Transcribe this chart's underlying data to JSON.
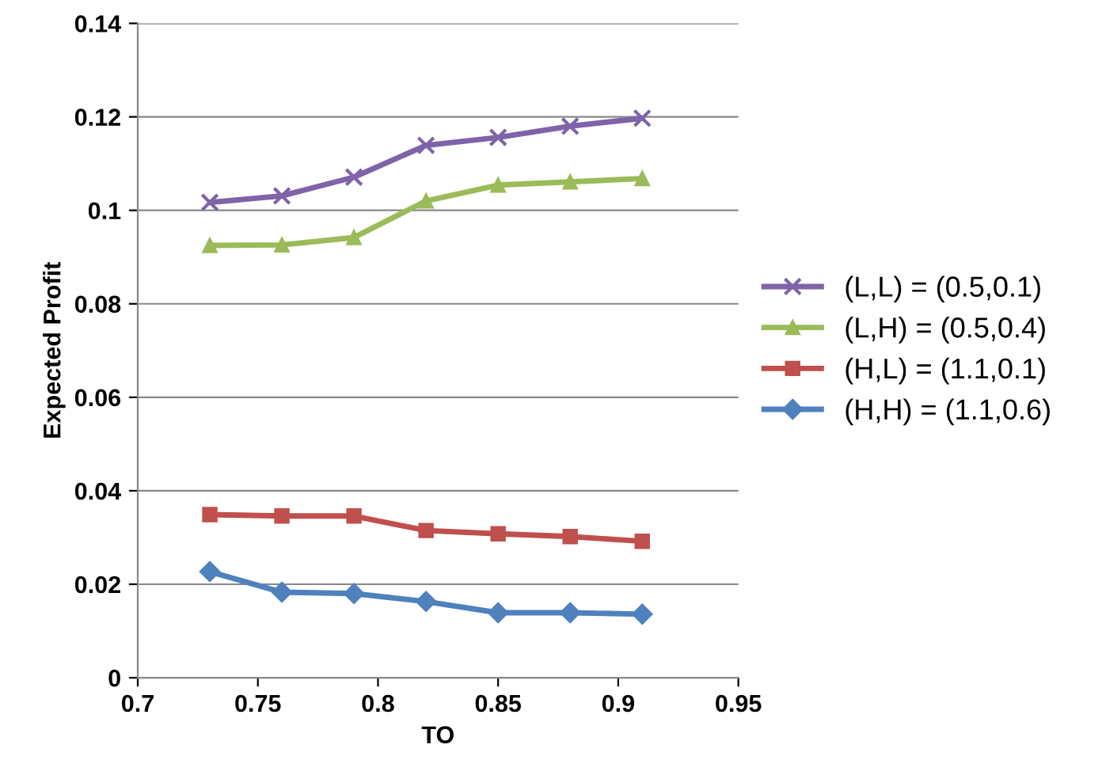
{
  "chart_data": {
    "type": "line",
    "xlabel": "TO",
    "ylabel": "Expected Profit",
    "xlim": [
      0.7,
      0.95
    ],
    "xticks": [
      0.7,
      0.75,
      0.8,
      0.85,
      0.9,
      0.95
    ],
    "ylim": [
      0,
      0.14
    ],
    "yticks": [
      0,
      0.02,
      0.04,
      0.06,
      0.08,
      0.1,
      0.12,
      0.14
    ],
    "grid": "y",
    "legend": "right",
    "x": [
      0.73,
      0.76,
      0.79,
      0.82,
      0.85,
      0.88,
      0.91
    ],
    "series": [
      {
        "name": "(L,L) = (0.5,0.1)",
        "color": "#7f63a8",
        "marker": "cross",
        "values": [
          0.1017,
          0.1031,
          0.1071,
          0.1139,
          0.1156,
          0.118,
          0.1197
        ]
      },
      {
        "name": "(L,H) = (0.5,0.4)",
        "color": "#9bbb59",
        "marker": "triangle",
        "values": [
          0.0925,
          0.0926,
          0.0942,
          0.102,
          0.1054,
          0.1061,
          0.1068
        ]
      },
      {
        "name": "(H,L) = (1.1,0.1)",
        "color": "#c0504d",
        "marker": "square",
        "values": [
          0.0349,
          0.0346,
          0.0346,
          0.0315,
          0.0308,
          0.0302,
          0.0292
        ]
      },
      {
        "name": "(H,H) = (1.1,0.6)",
        "color": "#4f81bd",
        "marker": "diamond",
        "values": [
          0.0227,
          0.0183,
          0.018,
          0.0163,
          0.0139,
          0.0139,
          0.0136
        ]
      }
    ]
  }
}
